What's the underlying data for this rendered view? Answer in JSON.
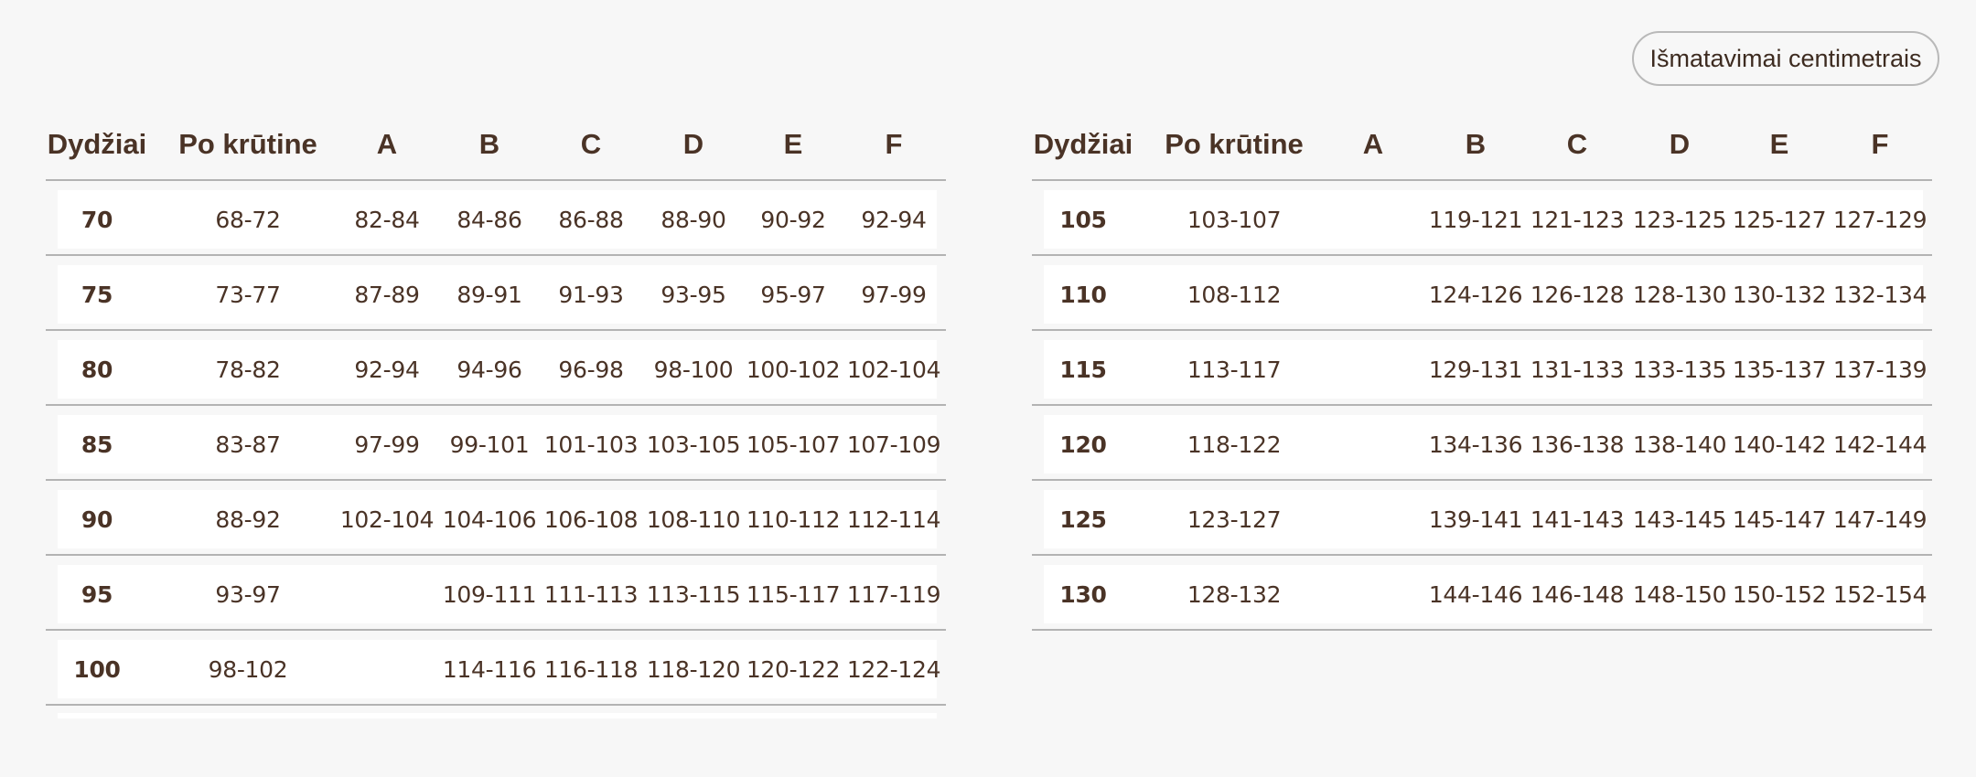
{
  "unit_button": "Išmatavimai centimetrais",
  "headers": [
    "Dydžiai",
    "Po krūtine",
    "A",
    "B",
    "C",
    "D",
    "E",
    "F"
  ],
  "left_table": {
    "rows": [
      [
        "70",
        "68-72",
        "82-84",
        "84-86",
        "86-88",
        "88-90",
        "90-92",
        "92-94"
      ],
      [
        "75",
        "73-77",
        "87-89",
        "89-91",
        "91-93",
        "93-95",
        "95-97",
        "97-99"
      ],
      [
        "80",
        "78-82",
        "92-94",
        "94-96",
        "96-98",
        "98-100",
        "100-102",
        "102-104"
      ],
      [
        "85",
        "83-87",
        "97-99",
        "99-101",
        "101-103",
        "103-105",
        "105-107",
        "107-109"
      ],
      [
        "90",
        "88-92",
        "102-104",
        "104-106",
        "106-108",
        "108-110",
        "110-112",
        "112-114"
      ],
      [
        "95",
        "93-97",
        "",
        "109-111",
        "111-113",
        "113-115",
        "115-117",
        "117-119"
      ],
      [
        "100",
        "98-102",
        "",
        "114-116",
        "116-118",
        "118-120",
        "120-122",
        "122-124"
      ]
    ]
  },
  "right_table": {
    "rows": [
      [
        "105",
        "103-107",
        "",
        "119-121",
        "121-123",
        "123-125",
        "125-127",
        "127-129"
      ],
      [
        "110",
        "108-112",
        "",
        "124-126",
        "126-128",
        "128-130",
        "130-132",
        "132-134"
      ],
      [
        "115",
        "113-117",
        "",
        "129-131",
        "131-133",
        "133-135",
        "135-137",
        "137-139"
      ],
      [
        "120",
        "118-122",
        "",
        "134-136",
        "136-138",
        "138-140",
        "140-142",
        "142-144"
      ],
      [
        "125",
        "123-127",
        "",
        "139-141",
        "141-143",
        "143-145",
        "145-147",
        "147-149"
      ],
      [
        "130",
        "128-132",
        "",
        "144-146",
        "146-148",
        "148-150",
        "150-152",
        "152-154"
      ]
    ]
  },
  "colors": {
    "text": "#4a3326",
    "background": "#f7f7f7",
    "row": "#ffffff",
    "divider": "#b3b3b3"
  }
}
